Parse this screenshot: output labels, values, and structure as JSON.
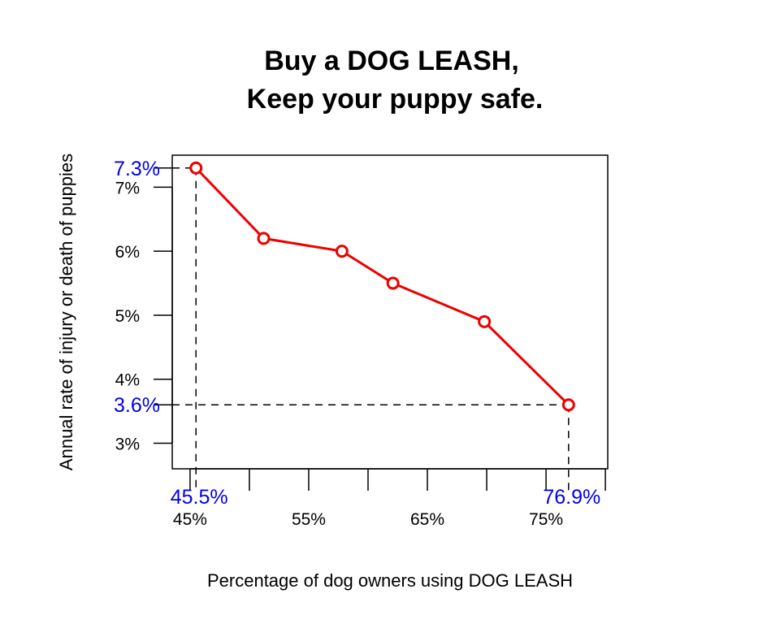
{
  "chart_data": {
    "type": "line",
    "title_lines": [
      "Buy a DOG LEASH,",
      "Keep your puppy safe."
    ],
    "xlabel": "Percentage of dog owners using DOG LEASH",
    "ylabel": "Annual rate of injury or death of puppies",
    "xlim": [
      43.5,
      80.2
    ],
    "ylim": [
      2.6,
      7.5
    ],
    "x_ticks": [
      45,
      50,
      55,
      60,
      65,
      70,
      75,
      80
    ],
    "x_tick_labels": [
      {
        "x": 45,
        "label": "45%"
      },
      {
        "x": 55,
        "label": "55%"
      },
      {
        "x": 65,
        "label": "65%"
      },
      {
        "x": 75,
        "label": "75%"
      }
    ],
    "y_ticks": [
      {
        "y": 3,
        "label": "3%"
      },
      {
        "y": 4,
        "label": "4%"
      },
      {
        "y": 5,
        "label": "5%"
      },
      {
        "y": 6,
        "label": "6%"
      },
      {
        "y": 7,
        "label": "7%"
      }
    ],
    "series": [
      {
        "x": [
          45.5,
          51.2,
          57.8,
          62.1,
          69.8,
          76.9
        ],
        "y": [
          7.3,
          6.2,
          6.0,
          5.5,
          4.9,
          3.6
        ]
      }
    ],
    "highlights": {
      "x_labels": [
        {
          "x": 45.5,
          "label": "45.5%"
        },
        {
          "x": 76.9,
          "label": "76.9%"
        }
      ],
      "y_labels": [
        {
          "y": 7.3,
          "label": "7.3%"
        },
        {
          "y": 3.6,
          "label": "3.6%"
        }
      ]
    },
    "colors": {
      "series": "#ee0000",
      "highlight": "#0000ee",
      "axis": "#000000"
    },
    "grid": false,
    "legend": "none"
  }
}
